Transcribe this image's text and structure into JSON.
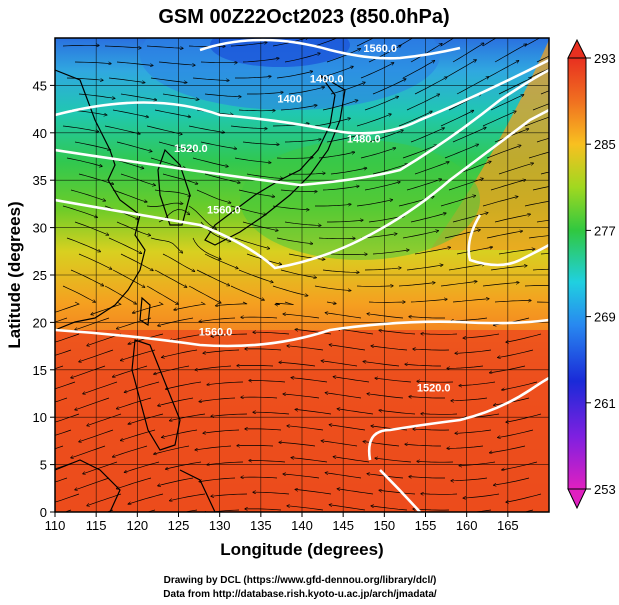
{
  "title": "GSM 00Z22Oct2023 (850.0hPa)",
  "x_axis": {
    "label": "Longitude (degrees)",
    "min": 110,
    "max": 170,
    "ticks": [
      "110",
      "115",
      "120",
      "125",
      "130",
      "135",
      "140",
      "145",
      "150",
      "155",
      "160",
      "165"
    ]
  },
  "y_axis": {
    "label": "Latitude  (degrees)",
    "min": 0,
    "max": 50,
    "ticks": [
      "0",
      "5",
      "10",
      "15",
      "20",
      "25",
      "30",
      "35",
      "40",
      "45"
    ]
  },
  "colorbar": {
    "ticks": [
      "293",
      "285",
      "277",
      "269",
      "261",
      "253"
    ],
    "min": 253,
    "max": 293
  },
  "contours": [
    {
      "label": "1400.0",
      "lon": 143,
      "lat": 45.3
    },
    {
      "label": "1400",
      "lon": 138.5,
      "lat": 43.2
    },
    {
      "label": "1480.0",
      "lon": 147.5,
      "lat": 39
    },
    {
      "label": "1520.0",
      "lon": 126.5,
      "lat": 38
    },
    {
      "label": "1560.0",
      "lon": 130.5,
      "lat": 31.5
    },
    {
      "label": "1560.0",
      "lon": 129.5,
      "lat": 18.6
    },
    {
      "label": "1520.0",
      "lon": 156,
      "lat": 12.7
    },
    {
      "label": "1560.0",
      "lon": 149.5,
      "lat": 48.5
    }
  ],
  "credits": [
    "Drawing by DCL (https://www.gfd-dennou.org/library/dcl/)",
    "Data from http://database.rish.kyoto-u.ac.jp/arch/jmadata/"
  ],
  "colors": {
    "warm": "#e8441a",
    "mid": "#3cc83c",
    "cold": "#2a6ae0",
    "contour": "#ffffff"
  }
}
